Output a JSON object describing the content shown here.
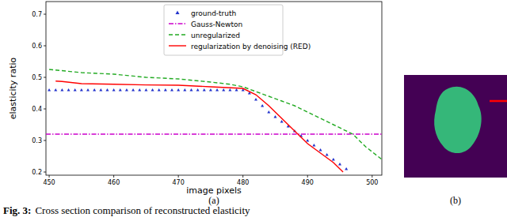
{
  "chart_data": {
    "type": "line",
    "xlabel": "image pixels",
    "ylabel": "elasticity ratio",
    "xlim": [
      449.5,
      501.5
    ],
    "ylim": [
      0.19,
      0.74
    ],
    "xticks": [
      450,
      460,
      470,
      480,
      490,
      500
    ],
    "yticks": [
      0.2,
      0.3,
      0.4,
      0.5,
      0.6,
      0.7
    ],
    "grid": false,
    "legend": "upper center",
    "series": [
      {
        "name": "ground-truth",
        "color": "#2233cc",
        "marker": "triangle",
        "line_style": "none",
        "x": [
          450,
          451,
          452,
          453,
          454,
          455,
          456,
          457,
          458,
          459,
          460,
          461,
          462,
          463,
          464,
          465,
          466,
          467,
          468,
          469,
          470,
          471,
          472,
          473,
          474,
          475,
          476,
          477,
          478,
          479,
          480,
          481,
          482,
          483,
          484,
          485,
          486,
          487,
          488,
          489,
          490,
          491,
          492,
          493,
          494,
          495,
          496
        ],
        "values": [
          0.46,
          0.46,
          0.46,
          0.46,
          0.46,
          0.46,
          0.46,
          0.46,
          0.46,
          0.46,
          0.46,
          0.46,
          0.46,
          0.46,
          0.46,
          0.46,
          0.46,
          0.46,
          0.46,
          0.46,
          0.46,
          0.46,
          0.46,
          0.46,
          0.46,
          0.46,
          0.46,
          0.46,
          0.46,
          0.46,
          0.46,
          0.45,
          0.43,
          0.41,
          0.39,
          0.375,
          0.36,
          0.345,
          0.33,
          0.315,
          0.3,
          0.285,
          0.27,
          0.255,
          0.24,
          0.225,
          0.21
        ]
      },
      {
        "name": "Gauss-Newton",
        "color": "#cc00cc",
        "marker": "none",
        "line_style": "dashdot",
        "x": [
          449.5,
          501.5
        ],
        "values": [
          0.32,
          0.32
        ]
      },
      {
        "name": "unregularized",
        "color": "#22aa22",
        "marker": "none",
        "line_style": "dashed",
        "x": [
          450,
          455,
          460,
          465,
          470,
          475,
          478,
          480,
          482,
          484,
          486,
          488,
          491,
          494,
          497,
          499,
          501.5
        ],
        "values": [
          0.525,
          0.515,
          0.51,
          0.5,
          0.495,
          0.485,
          0.478,
          0.47,
          0.455,
          0.44,
          0.425,
          0.41,
          0.38,
          0.35,
          0.32,
          0.28,
          0.24
        ]
      },
      {
        "name": "regularization by denoising (RED)",
        "color": "#ff0000",
        "marker": "none",
        "line_style": "solid",
        "x": [
          451,
          452,
          455,
          460,
          465,
          470,
          475,
          480,
          482,
          484,
          486,
          488,
          490,
          492,
          494,
          495.5
        ],
        "values": [
          0.488,
          0.487,
          0.48,
          0.478,
          0.476,
          0.475,
          0.47,
          0.465,
          0.445,
          0.41,
          0.37,
          0.33,
          0.29,
          0.26,
          0.23,
          0.2
        ]
      }
    ]
  },
  "panel_labels": [
    "(a)",
    "(b)"
  ],
  "caption": {
    "label": "Fig. 3:",
    "text": "Cross section comparison of reconstructed elasticity"
  }
}
